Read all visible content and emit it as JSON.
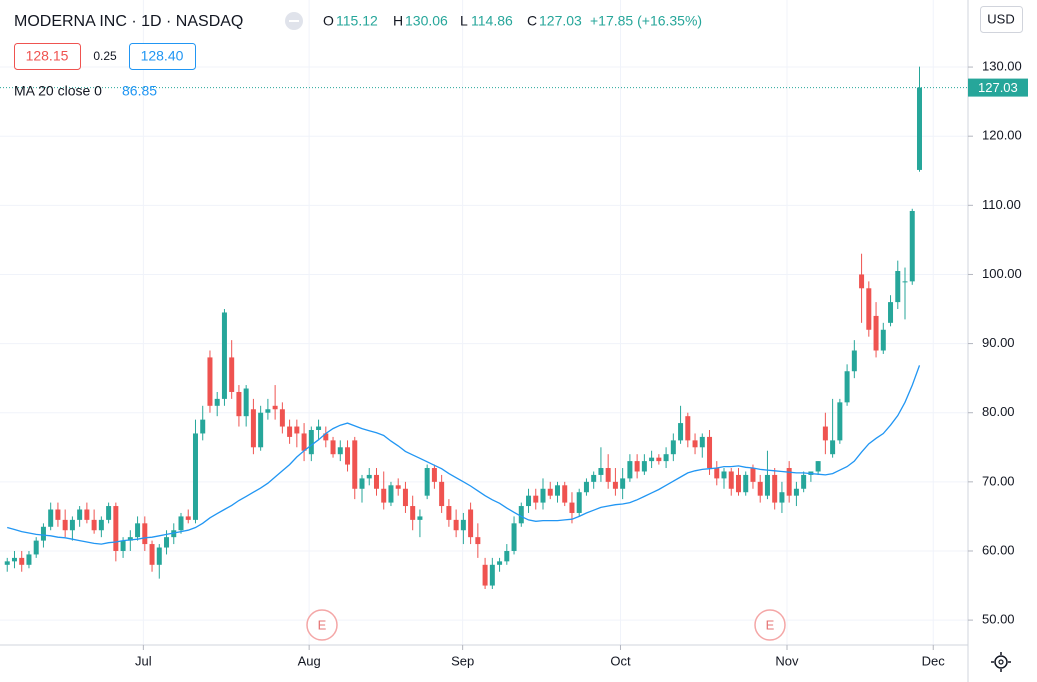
{
  "header": {
    "title": "MODERNA INC · 1D · NASDAQ",
    "ohlc_letters": [
      "O",
      "H",
      "L",
      "C"
    ],
    "change": "+17.85 (+16.35%)",
    "bid": "128.15",
    "spread": "0.25",
    "ask": "128.40",
    "indicator": "MA 20 close 0",
    "indicator_value": "86.85",
    "currency": "USD"
  },
  "events": [
    "E",
    "E"
  ],
  "chart_data": {
    "type": "candlestick",
    "up_color": "#26a69a",
    "down_color": "#ef5350",
    "open": [
      58,
      58.5,
      59,
      58,
      59.5,
      61.5,
      63.5,
      66,
      64.5,
      63,
      64.5,
      66,
      64.5,
      63,
      64.5,
      66.5,
      60,
      61.5,
      62,
      64,
      61,
      58,
      60.5,
      62,
      63,
      65,
      64.5,
      77,
      88,
      81,
      82,
      88,
      83,
      79.5,
      80.5,
      75,
      80,
      81,
      80.5,
      78,
      78,
      77,
      74,
      77.5,
      77,
      76,
      74,
      75,
      76,
      69,
      70.5,
      71,
      69,
      67,
      69.5,
      69,
      66.5,
      64.5,
      68,
      72,
      70,
      66.5,
      64.5,
      63,
      66,
      62,
      58,
      55,
      58,
      58.5,
      60,
      64,
      66.5,
      68,
      67,
      69,
      68,
      69.5,
      67,
      65.5,
      68.5,
      70,
      71,
      72,
      70,
      69,
      70.5,
      73,
      71.5,
      73,
      73.5,
      73,
      74,
      76,
      79.5,
      76,
      75,
      76.5,
      72,
      70.5,
      71.5,
      71,
      68.5,
      72,
      70,
      68,
      71,
      67,
      72,
      68,
      69,
      71,
      71.5,
      78,
      74,
      76,
      81.5,
      86,
      100,
      98,
      94,
      89,
      93,
      96,
      99,
      99,
      115.12
    ],
    "high": [
      59,
      60,
      60,
      60,
      62,
      64,
      67,
      67,
      66,
      65,
      66.5,
      67,
      66,
      65,
      67,
      67,
      62,
      63,
      65,
      65,
      61.5,
      61,
      63,
      64,
      65.5,
      66,
      79,
      81,
      89,
      83,
      95,
      90.5,
      84,
      84,
      82,
      81,
      82,
      84,
      81.5,
      79,
      79,
      78.5,
      78,
      79,
      78,
      76.5,
      76,
      76,
      76.5,
      71,
      72,
      72,
      71.5,
      70,
      70.5,
      70,
      68,
      66,
      72.5,
      72.5,
      71,
      67.5,
      66,
      65.5,
      67,
      64,
      59,
      59,
      59,
      61,
      65,
      67,
      69,
      69,
      70.5,
      70,
      70,
      70,
      68.5,
      69,
      70.5,
      71.5,
      75,
      74,
      72,
      72,
      74,
      74,
      74,
      74.5,
      74,
      75,
      77,
      81,
      80,
      77,
      77,
      77.5,
      73,
      72,
      72,
      72,
      71.5,
      72.5,
      71,
      74.5,
      72,
      70,
      73,
      70,
      71.5,
      71.5,
      73,
      80,
      82,
      82,
      87,
      90.5,
      103,
      99,
      96,
      93,
      97,
      102,
      101,
      109.5,
      130.06
    ],
    "low": [
      57,
      57.5,
      57,
      57.5,
      59,
      60.5,
      63,
      63.5,
      62,
      61.5,
      63.5,
      64,
      62.5,
      62,
      64,
      58.5,
      59,
      60,
      61.5,
      60,
      57,
      56,
      59.5,
      61,
      62.5,
      64,
      64,
      76,
      80,
      79.5,
      81,
      82,
      78,
      78,
      74,
      74.5,
      79,
      79,
      77,
      75.5,
      75,
      73,
      73,
      76,
      75,
      73.5,
      73,
      71.5,
      67.5,
      67,
      69.5,
      68,
      66,
      66.5,
      68,
      65.5,
      63,
      62,
      67.5,
      69,
      65.5,
      63.5,
      62,
      61,
      61,
      59,
      54.5,
      54.5,
      57,
      58,
      59.5,
      63.5,
      65.5,
      66,
      66,
      67.5,
      67,
      66.5,
      64,
      65,
      68,
      69,
      70,
      69,
      68,
      67.5,
      70,
      70.5,
      71,
      72,
      72.5,
      72,
      73,
      75.5,
      75,
      74,
      73.5,
      71,
      69.5,
      69,
      68,
      68,
      68,
      69,
      67,
      67.5,
      66,
      65.5,
      67,
      66.5,
      68.5,
      70,
      71,
      74,
      73.5,
      75.5,
      81,
      85,
      93,
      91,
      88,
      88.5,
      92.5,
      95,
      93.5,
      98.5,
      114.86
    ],
    "close": [
      58.5,
      59,
      58,
      59.5,
      61.5,
      63.5,
      66,
      64.5,
      63,
      64.5,
      66,
      64.5,
      63,
      64.5,
      66.5,
      60,
      61.5,
      62,
      64,
      61,
      58,
      60.5,
      62,
      63,
      65,
      64.5,
      77,
      79,
      81,
      82,
      94.5,
      83,
      79.5,
      83.5,
      75,
      80,
      80.5,
      80.5,
      78,
      76.5,
      77,
      74.5,
      77.5,
      78,
      76,
      74,
      75,
      72.5,
      69,
      70.5,
      71,
      69,
      67,
      69.5,
      69,
      66.5,
      64.5,
      65,
      72,
      70,
      66.5,
      64.5,
      63,
      64.5,
      62,
      61,
      55,
      58,
      58.5,
      60,
      64,
      66.5,
      68,
      67,
      69,
      68,
      69.5,
      67,
      65.5,
      68.5,
      70,
      71,
      72,
      70,
      69,
      70.5,
      73,
      71.5,
      73,
      73.5,
      73,
      74,
      76,
      78.5,
      76,
      75,
      76.5,
      72,
      70.5,
      71.5,
      69,
      68.5,
      71,
      70,
      68,
      71,
      67,
      68.5,
      68,
      69,
      71,
      71.5,
      73,
      76,
      76,
      81.5,
      86,
      89,
      98,
      92,
      89,
      92,
      96,
      100.5,
      99,
      109.18,
      127.03
    ],
    "ma": {
      "color": "#2196f3",
      "values": [
        63.4,
        63.1,
        62.8,
        62.6,
        62.4,
        62.3,
        62.2,
        62,
        61.9,
        61.7,
        61.5,
        61.3,
        61.1,
        61,
        61.2,
        61.3,
        61.5,
        61.6,
        61.7,
        61.9,
        62,
        62.2,
        62.4,
        62.6,
        62.8,
        63,
        63.4,
        64,
        64.8,
        65.4,
        66,
        66.6,
        67.3,
        67.9,
        68.5,
        69.1,
        69.8,
        70.7,
        71.6,
        72.5,
        73.6,
        74.5,
        75.3,
        76.1,
        77,
        77.7,
        78.2,
        78.5,
        78.1,
        77.7,
        77.4,
        77.1,
        76.7,
        75.9,
        75.2,
        74.4,
        73.9,
        73.4,
        72.9,
        72.4,
        71.9,
        71.2,
        70.6,
        70,
        69.4,
        68.7,
        68,
        67.4,
        66.9,
        66.2,
        65.6,
        65,
        64.5,
        64.3,
        64.4,
        64.4,
        64.4,
        64.5,
        64.6,
        65,
        65.5,
        65.9,
        66.3,
        66.5,
        66.7,
        66.8,
        67,
        67.4,
        67.9,
        68.4,
        68.9,
        69.5,
        70.1,
        70.7,
        71.3,
        71.6,
        71.8,
        71.9,
        72,
        72.2,
        72.2,
        72.3,
        72.1,
        72,
        71.8,
        71.7,
        71.6,
        71.5,
        71.4,
        71.3,
        71.3,
        71.2,
        71.1,
        71,
        71.2,
        71.7,
        72.2,
        73,
        74.3,
        75.5,
        76.3,
        77,
        78.2,
        79.6,
        81.5,
        84,
        86.85
      ]
    },
    "xlim": [
      -1,
      132.7
    ],
    "xticks": [
      {
        "value": 18.8,
        "label": "Jul"
      },
      {
        "value": 41.7,
        "label": "Aug"
      },
      {
        "value": 62.9,
        "label": "Sep"
      },
      {
        "value": 84.7,
        "label": "Oct"
      },
      {
        "value": 107.7,
        "label": "Nov"
      },
      {
        "value": 127.9,
        "label": "Dec"
      }
    ],
    "ylim": [
      46.4,
      139.7
    ],
    "yticks": [
      {
        "value": 50,
        "label": "50.00"
      },
      {
        "value": 60,
        "label": "60.00"
      },
      {
        "value": 70,
        "label": "70.00"
      },
      {
        "value": 80,
        "label": "80.00"
      },
      {
        "value": 90,
        "label": "90.00"
      },
      {
        "value": 100,
        "label": "100.00"
      },
      {
        "value": 110,
        "label": "110.00"
      },
      {
        "value": 120,
        "label": "120.00"
      },
      {
        "value": 130,
        "label": "130.00"
      }
    ],
    "grid": true
  }
}
